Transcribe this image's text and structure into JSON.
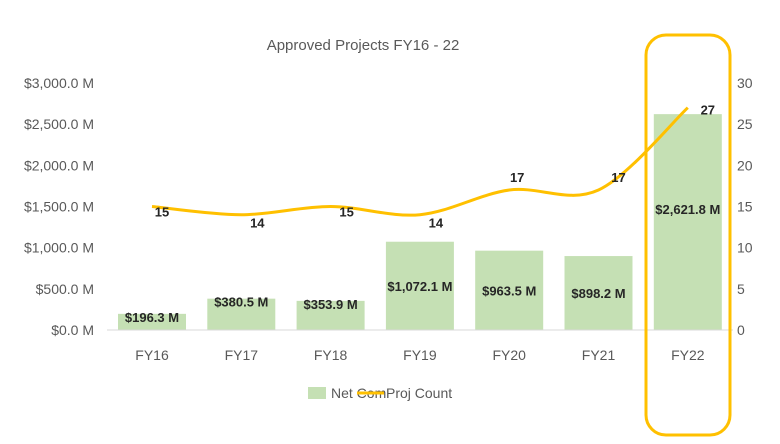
{
  "chart_data": {
    "type": "bar+line",
    "title": "Approved Projects FY16 - 22",
    "categories": [
      "FY16",
      "FY17",
      "FY18",
      "FY19",
      "FY20",
      "FY21",
      "FY22"
    ],
    "series": [
      {
        "name": "Net Com",
        "type": "bar",
        "axis": "left",
        "color": "#C5E0B4",
        "values": [
          196.3,
          380.5,
          353.9,
          1072.1,
          963.5,
          898.2,
          2621.8
        ],
        "labels": [
          "$196.3 M",
          "$380.5 M",
          "$353.9 M",
          "$1,072.1 M",
          "$963.5 M",
          "$898.2 M",
          "$2,621.8 M"
        ]
      },
      {
        "name": "Proj Count",
        "type": "line",
        "axis": "right",
        "color": "#FFC000",
        "smooth": true,
        "values": [
          15,
          14,
          15,
          14,
          17,
          17,
          27
        ],
        "labels": [
          "15",
          "14",
          "15",
          "14",
          "17",
          "17",
          "27"
        ]
      }
    ],
    "left_axis": {
      "ylim": [
        0,
        3000
      ],
      "ticks": [
        "$0.0 M",
        "$500.0 M",
        "$1,000.0 M",
        "$1,500.0 M",
        "$2,000.0 M",
        "$2,500.0 M",
        "$3,000.0 M"
      ]
    },
    "right_axis": {
      "ylim": [
        0,
        30
      ],
      "ticks": [
        "0",
        "5",
        "10",
        "15",
        "20",
        "25",
        "30"
      ]
    },
    "grid": false,
    "legend": "bottom",
    "highlight": {
      "category": "FY22",
      "color": "#FFC000"
    }
  }
}
